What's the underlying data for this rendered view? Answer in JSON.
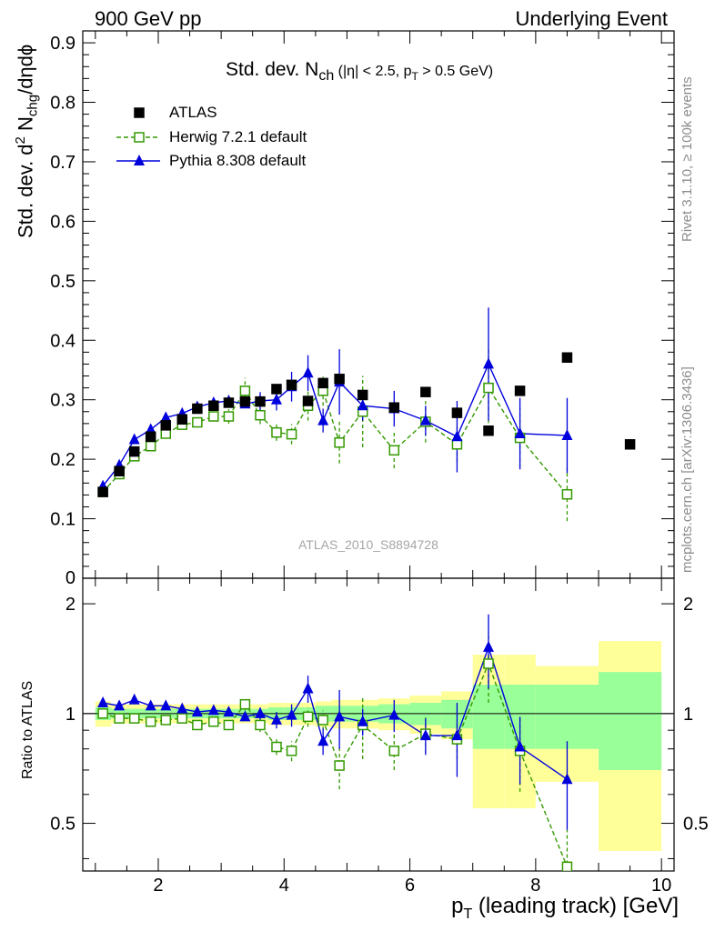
{
  "header": {
    "left": "900 GeV pp",
    "right": "Underlying Event"
  },
  "side_labels": {
    "top": "Rivet 3.1.10, ≥ 100k events",
    "bottom": "mcplots.cern.ch [arXiv:1306.3436]"
  },
  "colors": {
    "atlas": "#000000",
    "herwig": "#339900",
    "pythia": "#0000dd",
    "band_inner": "#99ff99",
    "band_outer": "#ffff99"
  },
  "chart_data": [
    {
      "type": "scatter",
      "title_main": "Std. dev. N",
      "title_sub": "ch",
      "title_rest": " (|η| < 2.5, p",
      "title_sub2": "T",
      "title_end": " > 0.5 GeV)",
      "ylabel": "Std. dev. d² Nₓₕ₉/dηdϕ",
      "ylabel_parts": [
        "Std. dev. d",
        "2",
        " N",
        "chg",
        "/dηdϕ"
      ],
      "watermark": "ATLAS_2010_S8894728",
      "xlim": [
        0.8,
        10.2
      ],
      "ylim": [
        0,
        0.92
      ],
      "yticks": [
        0.1,
        0.2,
        0.3,
        0.4,
        0.5,
        0.6,
        0.7,
        0.8,
        0.9
      ],
      "ytick_labels": [
        "0.1",
        "0.2",
        "0.3",
        "0.4",
        "0.5",
        "0.6",
        "0.7",
        "0.8",
        "0.9"
      ],
      "ytick_zero_label": "0",
      "legend_position": "top-left",
      "series": [
        {
          "name": "ATLAS",
          "style": "marker-square-filled",
          "x": [
            1.12,
            1.38,
            1.62,
            1.88,
            2.12,
            2.38,
            2.62,
            2.88,
            3.12,
            3.38,
            3.62,
            3.88,
            4.12,
            4.38,
            4.62,
            4.88,
            5.25,
            5.75,
            6.25,
            6.75,
            7.25,
            7.75,
            8.5,
            9.5
          ],
          "y": [
            0.145,
            0.18,
            0.213,
            0.238,
            0.257,
            0.267,
            0.285,
            0.29,
            0.295,
            0.297,
            0.297,
            0.318,
            0.325,
            0.298,
            0.328,
            0.335,
            0.308,
            0.287,
            0.313,
            0.278,
            0.248,
            0.315,
            0.371,
            0.225
          ]
        },
        {
          "name": "Herwig 7.2.1 default",
          "style": "dashed-open-square",
          "x": [
            1.12,
            1.38,
            1.62,
            1.88,
            2.12,
            2.38,
            2.62,
            2.88,
            3.12,
            3.38,
            3.62,
            3.88,
            4.12,
            4.38,
            4.62,
            4.88,
            5.25,
            5.75,
            6.25,
            6.75,
            7.25,
            7.75,
            8.5
          ],
          "y": [
            0.145,
            0.175,
            0.205,
            0.222,
            0.243,
            0.258,
            0.262,
            0.272,
            0.272,
            0.315,
            0.274,
            0.245,
            0.242,
            0.29,
            0.315,
            0.228,
            0.28,
            0.215,
            0.263,
            0.225,
            0.32,
            0.236,
            0.141
          ],
          "err": [
            0,
            0,
            0,
            0,
            0,
            0,
            0,
            0,
            0.012,
            0.022,
            0.015,
            0.014,
            0.017,
            0.025,
            0.025,
            0.035,
            0.06,
            0.03,
            0.035,
            0.03,
            0.07,
            0.05,
            0.045
          ]
        },
        {
          "name": "Pythia 8.308 default",
          "style": "solid-triangle",
          "x": [
            1.12,
            1.38,
            1.62,
            1.88,
            2.12,
            2.38,
            2.62,
            2.88,
            3.12,
            3.38,
            3.62,
            3.88,
            4.12,
            4.38,
            4.62,
            4.88,
            5.25,
            5.75,
            6.25,
            6.75,
            7.25,
            7.75,
            8.5
          ],
          "y": [
            0.155,
            0.19,
            0.233,
            0.25,
            0.27,
            0.277,
            0.288,
            0.295,
            0.298,
            0.293,
            0.298,
            0.3,
            0.322,
            0.345,
            0.265,
            0.33,
            0.29,
            0.285,
            0.265,
            0.238,
            0.36,
            0.243,
            0.24
          ],
          "err": [
            0,
            0,
            0,
            0,
            0,
            0,
            0,
            0,
            0,
            0,
            0.015,
            0.018,
            0.025,
            0.03,
            0.02,
            0.055,
            0.025,
            0.03,
            0.025,
            0.06,
            0.095,
            0.06,
            0.063
          ]
        }
      ]
    },
    {
      "type": "scatter",
      "ylabel": "Ratio to ATLAS",
      "xlabel_parts": [
        "p",
        "T",
        " (leading track) [GeV]"
      ],
      "xlim": [
        0.8,
        10.2
      ],
      "ylim": [
        0.37,
        2.35
      ],
      "yticks": [
        0.5,
        1,
        2
      ],
      "ytick_labels": [
        "0.5",
        "1",
        "2"
      ],
      "xticks": [
        2,
        4,
        6,
        8,
        10
      ],
      "xtick_labels": [
        "2",
        "4",
        "6",
        "8",
        "10"
      ],
      "bands": {
        "edges": [
          1.0,
          1.25,
          1.5,
          1.75,
          2.0,
          2.25,
          2.5,
          2.75,
          3.0,
          3.25,
          3.5,
          3.75,
          4.0,
          4.25,
          4.5,
          4.75,
          5.0,
          5.5,
          6.0,
          6.5,
          7.0,
          7.5,
          8.0,
          9.0,
          10.0
        ],
        "inner": [
          0.04,
          0.03,
          0.03,
          0.03,
          0.03,
          0.03,
          0.03,
          0.03,
          0.03,
          0.03,
          0.03,
          0.04,
          0.04,
          0.04,
          0.05,
          0.05,
          0.05,
          0.06,
          0.07,
          0.09,
          0.2,
          0.2,
          0.2,
          0.3
        ],
        "outer": [
          0.08,
          0.06,
          0.06,
          0.06,
          0.06,
          0.06,
          0.06,
          0.06,
          0.06,
          0.06,
          0.06,
          0.07,
          0.07,
          0.07,
          0.08,
          0.09,
          0.09,
          0.1,
          0.12,
          0.15,
          0.45,
          0.45,
          0.35,
          0.58
        ]
      },
      "series": [
        {
          "name": "Herwig 7.2.1 default",
          "x": [
            1.12,
            1.38,
            1.62,
            1.88,
            2.12,
            2.38,
            2.62,
            2.88,
            3.12,
            3.38,
            3.62,
            3.88,
            4.12,
            4.38,
            4.62,
            4.88,
            5.25,
            5.75,
            6.25,
            6.75,
            7.25,
            7.75,
            8.5
          ],
          "y": [
            1.0,
            0.97,
            0.97,
            0.95,
            0.96,
            0.97,
            0.93,
            0.95,
            0.93,
            1.06,
            0.93,
            0.81,
            0.79,
            0.98,
            0.96,
            0.72,
            0.93,
            0.79,
            0.88,
            0.85,
            1.37,
            0.79,
            0.38
          ],
          "err": [
            0,
            0,
            0,
            0,
            0,
            0,
            0,
            0,
            0.02,
            0.04,
            0.04,
            0.04,
            0.05,
            0.06,
            0.06,
            0.1,
            0.18,
            0.09,
            0.1,
            0.1,
            0.3,
            0.18,
            0.1
          ]
        },
        {
          "name": "Pythia 8.308 default",
          "x": [
            1.12,
            1.38,
            1.62,
            1.88,
            2.12,
            2.38,
            2.62,
            2.88,
            3.12,
            3.38,
            3.62,
            3.88,
            4.12,
            4.38,
            4.62,
            4.88,
            5.25,
            5.75,
            6.25,
            6.75,
            7.25,
            7.75,
            8.5
          ],
          "y": [
            1.07,
            1.05,
            1.09,
            1.05,
            1.05,
            1.03,
            1.01,
            1.02,
            1.01,
            0.98,
            1.0,
            0.96,
            0.99,
            1.17,
            0.84,
            0.98,
            0.95,
            0.99,
            0.87,
            0.87,
            1.52,
            0.81,
            0.66
          ],
          "err": [
            0,
            0,
            0,
            0,
            0,
            0,
            0,
            0,
            0,
            0,
            0.04,
            0.05,
            0.07,
            0.1,
            0.07,
            0.18,
            0.08,
            0.1,
            0.1,
            0.2,
            0.35,
            0.17,
            0.18
          ]
        }
      ]
    }
  ]
}
